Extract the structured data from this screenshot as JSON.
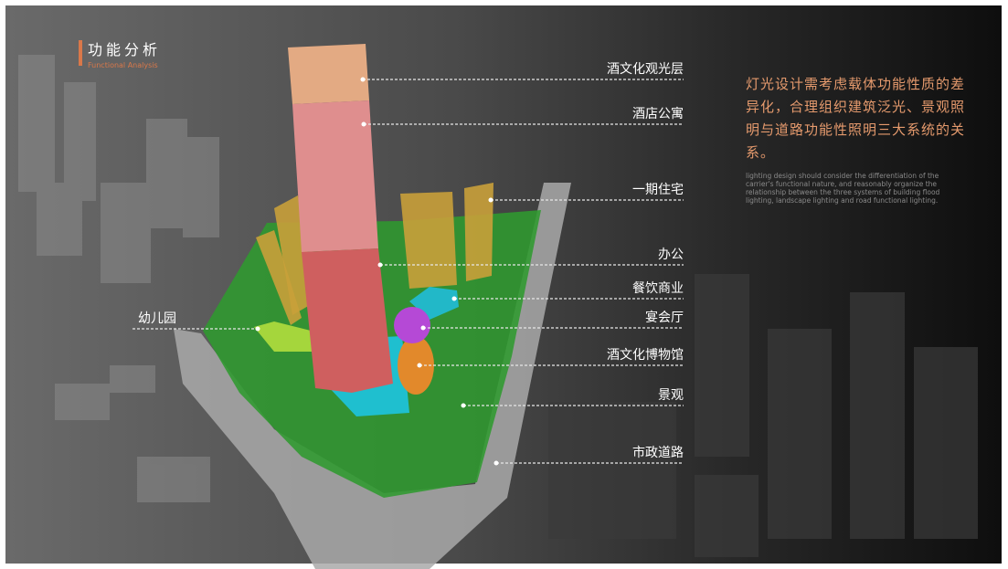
{
  "header": {
    "title": "功能分析",
    "subtitle": "Functional Analysis"
  },
  "description": {
    "chinese": "灯光设计需考虑载体功能性质的差异化，合理组织建筑泛光、景观照明与道路功能性照明三大系统的关系。",
    "english": "lighting design should consider the differentiation of the carrier's functional nature, and reasonably organize the relationship between the three systems of building flood lighting, landscape lighting and road functional lighting."
  },
  "labels": [
    "酒文化观光层",
    "酒店公寓",
    "一期住宅",
    "办公",
    "餐饮商业",
    "宴会厅",
    "酒文化博物馆",
    "景观",
    "市政道路",
    "幼儿园"
  ]
}
